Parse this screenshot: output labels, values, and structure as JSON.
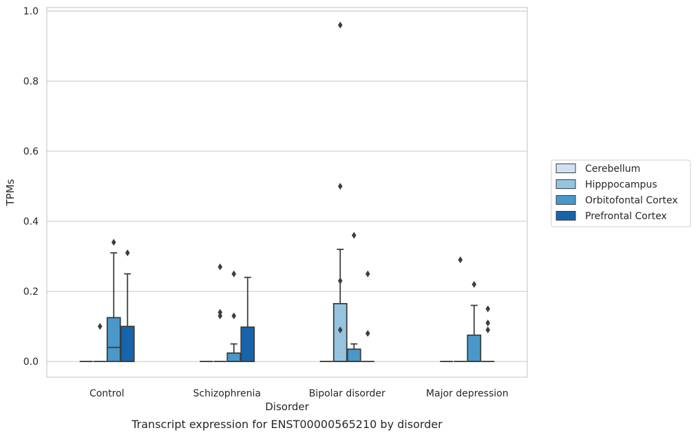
{
  "chart_data": {
    "type": "box",
    "xlabel": "Disorder",
    "ylabel": "TPMs",
    "caption": "Transcript expression for ENST00000565210 by disorder",
    "ylim": [
      -0.045,
      1.01
    ],
    "yticks": [
      0.0,
      0.2,
      0.4,
      0.6,
      0.8,
      1.0
    ],
    "ytick_labels": [
      "0.0",
      "0.2",
      "0.4",
      "0.6",
      "0.8",
      "1.0"
    ],
    "grid": "horizontal",
    "legend_position": "right",
    "categories": [
      "Control",
      "Schizophrenia",
      "Bipolar disorder",
      "Major depression"
    ],
    "series": [
      {
        "name": "Cerebellum",
        "color": "#d0e1f2",
        "boxes": [
          {
            "q1": 0,
            "median": 0,
            "q3": 0,
            "whisker_low": 0,
            "whisker_high": 0,
            "outliers": []
          },
          {
            "q1": 0,
            "median": 0,
            "q3": 0,
            "whisker_low": 0,
            "whisker_high": 0,
            "outliers": []
          },
          {
            "q1": 0,
            "median": 0,
            "q3": 0,
            "whisker_low": 0,
            "whisker_high": 0,
            "outliers": []
          },
          {
            "q1": 0,
            "median": 0,
            "q3": 0,
            "whisker_low": 0,
            "whisker_high": 0,
            "outliers": []
          }
        ]
      },
      {
        "name": "Hipppocampus",
        "color": "#94c4df",
        "boxes": [
          {
            "q1": 0,
            "median": 0,
            "q3": 0,
            "whisker_low": 0,
            "whisker_high": 0,
            "outliers": [
              0.1
            ]
          },
          {
            "q1": 0,
            "median": 0,
            "q3": 0,
            "whisker_low": 0,
            "whisker_high": 0,
            "outliers": [
              0.27,
              0.14,
              0.13
            ]
          },
          {
            "q1": 0,
            "median": 0,
            "q3": 0.165,
            "whisker_low": 0,
            "whisker_high": 0.32,
            "outliers": [
              0.96,
              0.5,
              0.23,
              0.09
            ]
          },
          {
            "q1": 0,
            "median": 0,
            "q3": 0,
            "whisker_low": 0,
            "whisker_high": 0,
            "outliers": [
              0.29
            ]
          }
        ]
      },
      {
        "name": "Orbitofontal Cortex",
        "color": "#4a98c9",
        "boxes": [
          {
            "q1": 0,
            "median": 0.04,
            "q3": 0.125,
            "whisker_low": 0,
            "whisker_high": 0.31,
            "outliers": [
              0.34
            ]
          },
          {
            "q1": 0,
            "median": 0,
            "q3": 0.024,
            "whisker_low": 0,
            "whisker_high": 0.05,
            "outliers": [
              0.13,
              0.25
            ]
          },
          {
            "q1": 0,
            "median": 0,
            "q3": 0.035,
            "whisker_low": 0,
            "whisker_high": 0.05,
            "outliers": [
              0.36
            ]
          },
          {
            "q1": 0,
            "median": 0,
            "q3": 0.075,
            "whisker_low": 0,
            "whisker_high": 0.16,
            "outliers": [
              0.22
            ]
          }
        ]
      },
      {
        "name": "Prefrontal Cortex",
        "color": "#1764ab",
        "boxes": [
          {
            "q1": 0,
            "median": 0,
            "q3": 0.1,
            "whisker_low": 0,
            "whisker_high": 0.25,
            "outliers": [
              0.31
            ]
          },
          {
            "q1": 0,
            "median": 0,
            "q3": 0.098,
            "whisker_low": 0,
            "whisker_high": 0.24,
            "outliers": []
          },
          {
            "q1": 0,
            "median": 0,
            "q3": 0,
            "whisker_low": 0,
            "whisker_high": 0,
            "outliers": [
              0.25,
              0.08
            ]
          },
          {
            "q1": 0,
            "median": 0,
            "q3": 0,
            "whisker_low": 0,
            "whisker_high": 0,
            "outliers": [
              0.15,
              0.11,
              0.09
            ]
          }
        ]
      }
    ]
  }
}
